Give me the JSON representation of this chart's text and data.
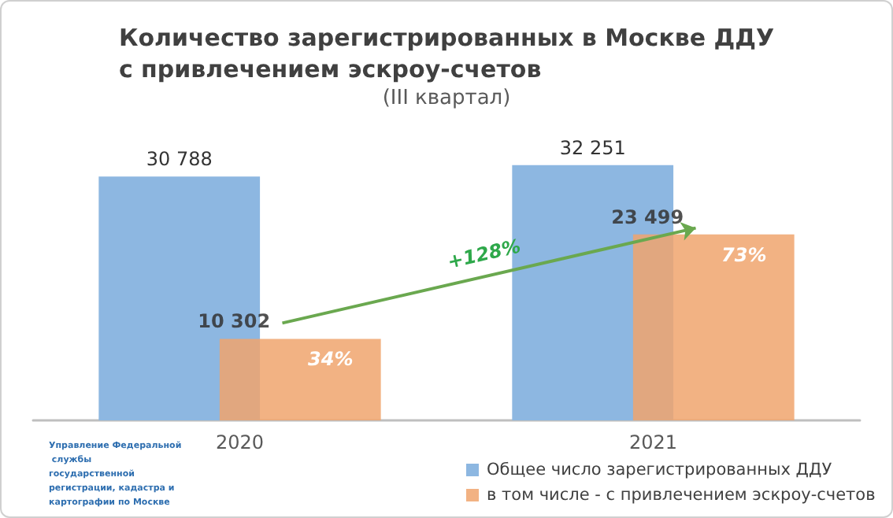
{
  "chart_data": {
    "type": "bar",
    "title": "Количество зарегистрированных в Москве ДДУ\nс привлечением эскроу-счетов",
    "subtitle": "(III квартал)",
    "categories": [
      "2020",
      "2021"
    ],
    "series": [
      {
        "name": "Общее число зарегистрированных ДДУ",
        "color": "#8db7e1",
        "values": [
          30788,
          32251
        ],
        "value_labels": [
          "30 788",
          "32 251"
        ]
      },
      {
        "name": "в том числе - с привлечением эскроу-счетов",
        "color": "#f0a46d",
        "values": [
          10302,
          23499
        ],
        "value_labels": [
          "10 302",
          "23 499"
        ]
      }
    ],
    "annotations": [
      "34%",
      "73%",
      "+128%",
      "Управление Федеральной службы государственной регистрации, кадастра и картографии по Москве"
    ],
    "legend": "bottom",
    "grid": false
  }
}
